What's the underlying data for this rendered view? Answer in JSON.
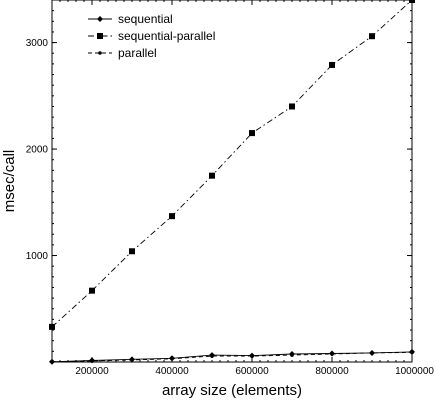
{
  "chart_data": {
    "type": "line",
    "title": "",
    "xlabel": "array size (elements)",
    "ylabel": "msec/call",
    "xlim": [
      100000,
      1000000
    ],
    "ylim": [
      0,
      3400
    ],
    "x_ticks": [
      200000,
      400000,
      600000,
      800000,
      1000000
    ],
    "y_ticks": [
      1000,
      2000,
      3000
    ],
    "x_tick_labels": [
      "200000",
      "400000",
      "600000",
      "800000",
      "1000000"
    ],
    "y_tick_labels": [
      "1000",
      "2000",
      "3000"
    ],
    "grid": false,
    "legend_position": "top-left",
    "series": [
      {
        "name": "sequential",
        "marker": "diamond",
        "line_style": "solid",
        "color": "#000000",
        "x": [
          100000,
          200000,
          300000,
          400000,
          500000,
          600000,
          700000,
          800000,
          900000,
          1000000
        ],
        "values": [
          2,
          15,
          25,
          35,
          65,
          60,
          75,
          80,
          85,
          95
        ]
      },
      {
        "name": "sequential-parallel",
        "marker": "square",
        "line_style": "dash-dot",
        "color": "#000000",
        "x": [
          100000,
          200000,
          300000,
          400000,
          500000,
          600000,
          700000,
          800000,
          900000,
          1000000
        ],
        "values": [
          330,
          670,
          1040,
          1370,
          1750,
          2150,
          2400,
          2790,
          3060,
          3400
        ]
      },
      {
        "name": "parallel",
        "marker": "dot",
        "line_style": "dashed",
        "color": "#000000",
        "x": [
          100000,
          200000,
          300000,
          400000,
          500000,
          600000,
          700000,
          800000,
          900000,
          1000000
        ],
        "values": [
          2,
          10,
          20,
          30,
          55,
          55,
          65,
          75,
          85,
          90
        ]
      }
    ]
  }
}
